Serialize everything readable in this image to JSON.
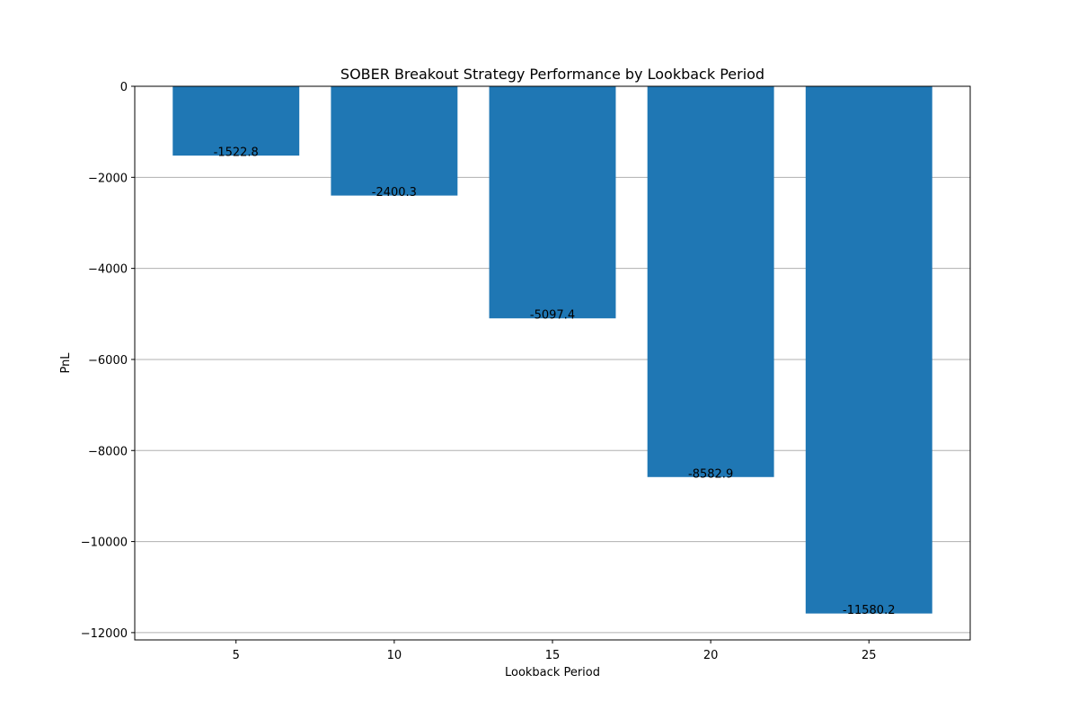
{
  "chart_data": {
    "type": "bar",
    "title": "SOBER Breakout Strategy Performance by Lookback Period",
    "xlabel": "Lookback Period",
    "ylabel": "PnL",
    "categories": [
      5,
      10,
      15,
      20,
      25
    ],
    "values": [
      -1522.8,
      -2400.3,
      -5097.4,
      -8582.9,
      -11580.2
    ],
    "value_labels": [
      "-1522.8",
      "-2400.3",
      "-5097.4",
      "-8582.9",
      "-11580.2"
    ],
    "xlim": [
      1.8,
      28.2
    ],
    "ylim": [
      -12160.2,
      0
    ],
    "x_ticks": [
      5,
      10,
      15,
      20,
      25
    ],
    "x_tick_labels": [
      "5",
      "10",
      "15",
      "20",
      "25"
    ],
    "y_ticks": [
      0,
      -2000,
      -4000,
      -6000,
      -8000,
      -10000,
      -12000
    ],
    "y_tick_labels": [
      "0",
      "−2000",
      "−4000",
      "−6000",
      "−8000",
      "−10000",
      "−12000"
    ],
    "bar_width": 4,
    "grid": "y",
    "bar_color": "#1f77b4"
  }
}
